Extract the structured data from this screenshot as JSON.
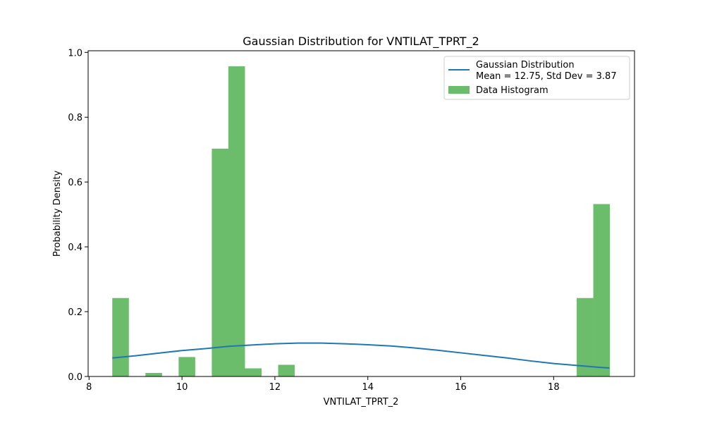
{
  "chart_data": {
    "type": "bar",
    "title": "Gaussian Distribution for VNTILAT_TPRT_2",
    "xlabel": "VNTILAT_TPRT_2",
    "ylabel": "Probability Density",
    "xlim": [
      7.98,
      19.74
    ],
    "ylim": [
      0.0,
      1.005
    ],
    "xticks": [
      8,
      10,
      12,
      14,
      16,
      18
    ],
    "yticks": [
      0.0,
      0.2,
      0.4,
      0.6,
      0.8,
      1.0
    ],
    "grid": false,
    "legend_position": "top-right",
    "series": [
      {
        "name": "Data Histogram",
        "kind": "histogram",
        "color": "#2ca02c",
        "bin_start": 8.5,
        "bin_width": 0.357,
        "values": [
          0.242,
          0,
          0.011,
          0,
          0.06,
          0,
          0.703,
          0.957,
          0.025,
          0,
          0.036,
          0,
          0,
          0,
          0,
          0,
          0,
          0,
          0,
          0,
          0,
          0,
          0,
          0,
          0,
          0,
          0,
          0,
          0.242,
          0.532
        ]
      },
      {
        "name": "Gaussian Distribution\nMean = 12.75, Std Dev = 3.87",
        "name_lines": [
          "Gaussian Distribution",
          "Mean = 12.75, Std Dev = 3.87"
        ],
        "kind": "line",
        "color": "#1f77b4",
        "x": [
          8.5,
          9.0,
          9.5,
          10.0,
          10.5,
          11.0,
          11.5,
          12.0,
          12.5,
          12.75,
          13.0,
          13.5,
          14.0,
          14.5,
          15.0,
          15.5,
          16.0,
          16.5,
          17.0,
          17.5,
          18.0,
          18.5,
          19.0,
          19.2
        ],
        "y": [
          0.057,
          0.064,
          0.072,
          0.08,
          0.086,
          0.093,
          0.097,
          0.101,
          0.103,
          0.103,
          0.103,
          0.101,
          0.098,
          0.094,
          0.088,
          0.081,
          0.073,
          0.065,
          0.057,
          0.048,
          0.04,
          0.034,
          0.028,
          0.026
        ]
      }
    ]
  }
}
